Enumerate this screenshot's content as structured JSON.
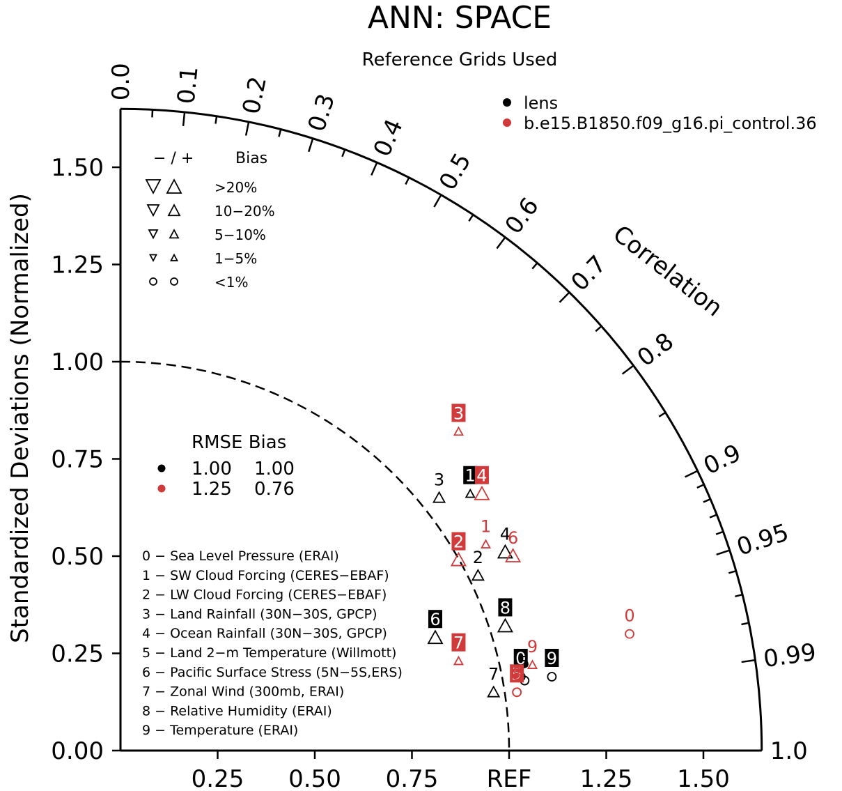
{
  "chart_data": {
    "type": "taylor",
    "title": "ANN: SPACE",
    "subtitle": "Reference Grids Used",
    "ylabel": "Standardized Deviations (Normalized)",
    "arc_label": "Correlation",
    "ref_label": "REF",
    "rlim": [
      0,
      1.65
    ],
    "y_ticks": [
      {
        "value": 0.0,
        "label": "0.00"
      },
      {
        "value": 0.25,
        "label": "0.25"
      },
      {
        "value": 0.5,
        "label": "0.50"
      },
      {
        "value": 0.75,
        "label": "0.75"
      },
      {
        "value": 1.0,
        "label": "1.00"
      },
      {
        "value": 1.25,
        "label": "1.25"
      },
      {
        "value": 1.5,
        "label": "1.50"
      }
    ],
    "x_ticks": [
      {
        "value": 0.25,
        "label": "0.25"
      },
      {
        "value": 0.5,
        "label": "0.50"
      },
      {
        "value": 0.75,
        "label": "0.75"
      },
      {
        "value": 1.0,
        "label": "REF"
      },
      {
        "value": 1.25,
        "label": "1.25"
      },
      {
        "value": 1.5,
        "label": "1.50"
      }
    ],
    "correlation_labels": [
      {
        "value": 0.0,
        "label": "0.0"
      },
      {
        "value": 0.1,
        "label": "0.1"
      },
      {
        "value": 0.2,
        "label": "0.2"
      },
      {
        "value": 0.3,
        "label": "0.3"
      },
      {
        "value": 0.4,
        "label": "0.4"
      },
      {
        "value": 0.5,
        "label": "0.5"
      },
      {
        "value": 0.6,
        "label": "0.6"
      },
      {
        "value": 0.7,
        "label": "0.7"
      },
      {
        "value": 0.8,
        "label": "0.8"
      },
      {
        "value": 0.9,
        "label": "0.9"
      },
      {
        "value": 0.95,
        "label": "0.95"
      },
      {
        "value": 0.99,
        "label": "0.99"
      },
      {
        "value": 1.0,
        "label": "1.0"
      }
    ],
    "correlation_minor_ticks": [
      0.05,
      0.15,
      0.25,
      0.35,
      0.45,
      0.55,
      0.65,
      0.75,
      0.85,
      0.91,
      0.92,
      0.93,
      0.94,
      0.96,
      0.97,
      0.98
    ],
    "reference_arc": 1.0,
    "series": [
      {
        "name": "lens",
        "color": "#000000",
        "rmse": "1.00",
        "bias": "1.00",
        "points": [
          {
            "id": "0",
            "x": 1.03,
            "y": 0.19,
            "marker": "circle-small",
            "label_style": "box"
          },
          {
            "id": "1",
            "x": 0.9,
            "y": 0.66,
            "marker": "triangle-up-small",
            "label_style": "box"
          },
          {
            "id": "2",
            "x": 0.92,
            "y": 0.45,
            "marker": "triangle-up-medium",
            "label_style": "plain"
          },
          {
            "id": "3",
            "x": 0.82,
            "y": 0.65,
            "marker": "triangle-up-medium",
            "label_style": "plain"
          },
          {
            "id": "4",
            "x": 0.99,
            "y": 0.51,
            "marker": "triangle-up-large",
            "label_style": "plain"
          },
          {
            "id": "5",
            "x": 1.04,
            "y": 0.18,
            "marker": "circle-small",
            "label_style": "plain"
          },
          {
            "id": "6",
            "x": 0.81,
            "y": 0.29,
            "marker": "triangle-up-large",
            "label_style": "box"
          },
          {
            "id": "7",
            "x": 0.96,
            "y": 0.15,
            "marker": "triangle-up-medium",
            "label_style": "plain"
          },
          {
            "id": "8",
            "x": 0.99,
            "y": 0.32,
            "marker": "triangle-up-large",
            "label_style": "box"
          },
          {
            "id": "9",
            "x": 1.11,
            "y": 0.19,
            "marker": "circle-small",
            "label_style": "box"
          }
        ]
      },
      {
        "name": "b.e15.B1850.f09_g16.pi_control.36",
        "color": "#d03a3a",
        "rmse": "1.25",
        "bias": "0.76",
        "points": [
          {
            "id": "0",
            "x": 1.31,
            "y": 0.3,
            "marker": "circle-large",
            "label_style": "plain"
          },
          {
            "id": "1",
            "x": 0.94,
            "y": 0.53,
            "marker": "triangle-up-small",
            "label_style": "plain"
          },
          {
            "id": "2",
            "x": 0.87,
            "y": 0.49,
            "marker": "triangle-up-large",
            "label_style": "box"
          },
          {
            "id": "3",
            "x": 0.87,
            "y": 0.82,
            "marker": "triangle-up-small",
            "label_style": "box"
          },
          {
            "id": "4",
            "x": 0.93,
            "y": 0.66,
            "marker": "triangle-up-large",
            "label_style": "box"
          },
          {
            "id": "5",
            "x": 1.02,
            "y": 0.15,
            "marker": "circle-large",
            "label_style": "box"
          },
          {
            "id": "6",
            "x": 1.01,
            "y": 0.5,
            "marker": "triangle-up-large",
            "label_style": "plain"
          },
          {
            "id": "7",
            "x": 0.87,
            "y": 0.23,
            "marker": "triangle-up-small",
            "label_style": "box"
          },
          {
            "id": "8",
            "x": 1.02,
            "y": 0.15,
            "marker": "circle-large",
            "label_style": "plain"
          },
          {
            "id": "9",
            "x": 1.06,
            "y": 0.22,
            "marker": "triangle-up-small",
            "label_style": "plain"
          }
        ]
      }
    ],
    "bias_legend": {
      "header_minus_plus": "− / +",
      "header_bias": "Bias",
      "rows": [
        "&gt;20%",
        "10−20%",
        "5−10%",
        "1−5%",
        "<1%"
      ]
    },
    "stats_legend": {
      "header": "RMSE Bias"
    },
    "variables": [
      "0 − Sea Level Pressure (ERAI)",
      "1 − SW Cloud Forcing (CERES−EBAF)",
      "2 − LW Cloud Forcing (CERES−EBAF)",
      "3 − Land Rainfall (30N−30S, GPCP)",
      "4 − Ocean Rainfall (30N−30S, GPCP)",
      "5 − Land 2−m Temperature (Willmott)",
      "6 − Pacific Surface Stress (5N−5S,ERS)",
      "7 − Zonal Wind (300mb, ERAI)",
      "8 − Relative Humidity (ERAI)",
      "9 − Temperature (ERAI)"
    ]
  }
}
